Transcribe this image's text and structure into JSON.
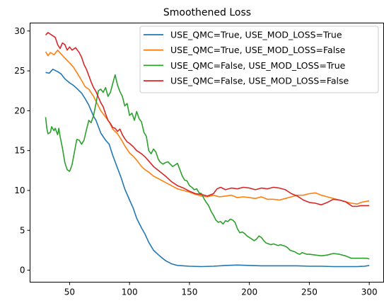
{
  "chart_data": {
    "type": "line",
    "title": "Smoothened Loss",
    "xlabel": "",
    "ylabel": "",
    "xlim": [
      17,
      312
    ],
    "ylim": [
      -1.5,
      31.0
    ],
    "xticks": [
      50,
      100,
      150,
      200,
      250,
      300
    ],
    "yticks": [
      0,
      5,
      10,
      15,
      20,
      25,
      30
    ],
    "grid": false,
    "legend_position": "top-right",
    "series": [
      {
        "name": "USE_QMC=True,  USE_MOD_LOSS=True",
        "color": "#1f77b4",
        "points": [
          [
            30,
            24.8
          ],
          [
            33,
            24.7
          ],
          [
            36,
            25.2
          ],
          [
            40,
            24.9
          ],
          [
            43,
            24.6
          ],
          [
            46,
            24.0
          ],
          [
            50,
            23.5
          ],
          [
            53,
            23.2
          ],
          [
            56,
            22.8
          ],
          [
            60,
            22.2
          ],
          [
            63,
            21.5
          ],
          [
            66,
            20.7
          ],
          [
            70,
            19.3
          ],
          [
            72,
            18.8
          ],
          [
            74,
            18.0
          ],
          [
            76,
            17.2
          ],
          [
            80,
            16.3
          ],
          [
            83,
            15.8
          ],
          [
            86,
            14.4
          ],
          [
            90,
            12.8
          ],
          [
            93,
            11.6
          ],
          [
            96,
            10.2
          ],
          [
            100,
            8.8
          ],
          [
            103,
            7.8
          ],
          [
            106,
            6.5
          ],
          [
            110,
            5.3
          ],
          [
            113,
            4.5
          ],
          [
            116,
            3.5
          ],
          [
            120,
            2.5
          ],
          [
            125,
            1.8
          ],
          [
            130,
            1.2
          ],
          [
            135,
            0.8
          ],
          [
            140,
            0.6
          ],
          [
            145,
            0.55
          ],
          [
            150,
            0.5
          ],
          [
            160,
            0.45
          ],
          [
            170,
            0.5
          ],
          [
            180,
            0.6
          ],
          [
            190,
            0.65
          ],
          [
            200,
            0.6
          ],
          [
            210,
            0.55
          ],
          [
            220,
            0.55
          ],
          [
            230,
            0.55
          ],
          [
            240,
            0.55
          ],
          [
            250,
            0.5
          ],
          [
            260,
            0.5
          ],
          [
            270,
            0.45
          ],
          [
            280,
            0.45
          ],
          [
            290,
            0.45
          ],
          [
            296,
            0.5
          ],
          [
            300,
            0.6
          ]
        ]
      },
      {
        "name": "USE_QMC=True,  USE_MOD_LOSS=False",
        "color": "#ff7f0e",
        "points": [
          [
            30,
            27.4
          ],
          [
            32,
            26.9
          ],
          [
            34,
            27.3
          ],
          [
            37,
            27.0
          ],
          [
            40,
            27.6
          ],
          [
            43,
            27.1
          ],
          [
            46,
            26.6
          ],
          [
            50,
            26.0
          ],
          [
            53,
            25.5
          ],
          [
            56,
            24.8
          ],
          [
            60,
            23.8
          ],
          [
            63,
            23.0
          ],
          [
            66,
            22.7
          ],
          [
            70,
            21.8
          ],
          [
            73,
            20.9
          ],
          [
            76,
            20.0
          ],
          [
            80,
            19.2
          ],
          [
            83,
            18.6
          ],
          [
            86,
            17.7
          ],
          [
            90,
            17.1
          ],
          [
            93,
            16.4
          ],
          [
            96,
            15.6
          ],
          [
            100,
            14.7
          ],
          [
            103,
            14.3
          ],
          [
            106,
            13.8
          ],
          [
            110,
            13.0
          ],
          [
            113,
            12.6
          ],
          [
            116,
            12.3
          ],
          [
            120,
            11.8
          ],
          [
            125,
            11.4
          ],
          [
            130,
            11.0
          ],
          [
            135,
            10.6
          ],
          [
            140,
            10.2
          ],
          [
            145,
            10.0
          ],
          [
            150,
            9.8
          ],
          [
            155,
            9.5
          ],
          [
            160,
            9.3
          ],
          [
            165,
            9.2
          ],
          [
            170,
            9.4
          ],
          [
            175,
            9.2
          ],
          [
            180,
            9.3
          ],
          [
            185,
            9.4
          ],
          [
            190,
            9.1
          ],
          [
            195,
            9.2
          ],
          [
            200,
            9.1
          ],
          [
            205,
            9.0
          ],
          [
            210,
            9.2
          ],
          [
            215,
            8.9
          ],
          [
            220,
            8.9
          ],
          [
            225,
            8.8
          ],
          [
            230,
            9.0
          ],
          [
            235,
            9.2
          ],
          [
            240,
            9.4
          ],
          [
            245,
            9.4
          ],
          [
            250,
            9.6
          ],
          [
            255,
            9.7
          ],
          [
            260,
            9.4
          ],
          [
            265,
            9.2
          ],
          [
            270,
            9.0
          ],
          [
            275,
            8.8
          ],
          [
            280,
            8.6
          ],
          [
            285,
            8.4
          ],
          [
            290,
            8.3
          ],
          [
            293,
            8.5
          ],
          [
            296,
            8.6
          ],
          [
            300,
            8.7
          ]
        ]
      },
      {
        "name": "USE_QMC=False, USE_MOD_LOSS=True",
        "color": "#2ca02c",
        "points": [
          [
            30,
            19.2
          ],
          [
            31,
            17.8
          ],
          [
            32,
            17.1
          ],
          [
            34,
            17.3
          ],
          [
            35,
            18.0
          ],
          [
            37,
            17.5
          ],
          [
            38,
            17.8
          ],
          [
            40,
            17.0
          ],
          [
            41,
            17.8
          ],
          [
            42,
            16.8
          ],
          [
            44,
            15.3
          ],
          [
            46,
            13.5
          ],
          [
            48,
            12.6
          ],
          [
            50,
            12.4
          ],
          [
            52,
            13.2
          ],
          [
            54,
            14.8
          ],
          [
            56,
            16.4
          ],
          [
            58,
            16.3
          ],
          [
            60,
            15.8
          ],
          [
            62,
            16.3
          ],
          [
            64,
            17.6
          ],
          [
            66,
            18.8
          ],
          [
            68,
            18.5
          ],
          [
            70,
            19.4
          ],
          [
            72,
            20.9
          ],
          [
            74,
            22.5
          ],
          [
            76,
            22.7
          ],
          [
            78,
            22.3
          ],
          [
            80,
            22.9
          ],
          [
            82,
            21.8
          ],
          [
            84,
            22.3
          ],
          [
            86,
            23.4
          ],
          [
            88,
            24.5
          ],
          [
            90,
            23.2
          ],
          [
            92,
            22.4
          ],
          [
            94,
            21.8
          ],
          [
            96,
            20.6
          ],
          [
            98,
            20.9
          ],
          [
            100,
            19.4
          ],
          [
            102,
            19.7
          ],
          [
            104,
            18.8
          ],
          [
            106,
            19.9
          ],
          [
            108,
            19.0
          ],
          [
            110,
            18.6
          ],
          [
            112,
            17.3
          ],
          [
            114,
            16.8
          ],
          [
            116,
            15.0
          ],
          [
            118,
            14.6
          ],
          [
            120,
            15.2
          ],
          [
            122,
            14.8
          ],
          [
            124,
            13.9
          ],
          [
            126,
            13.5
          ],
          [
            128,
            13.3
          ],
          [
            130,
            13.5
          ],
          [
            132,
            13.6
          ],
          [
            134,
            13.3
          ],
          [
            136,
            13.0
          ],
          [
            138,
            13.2
          ],
          [
            140,
            13.4
          ],
          [
            142,
            12.6
          ],
          [
            144,
            11.8
          ],
          [
            146,
            11.3
          ],
          [
            148,
            11.2
          ],
          [
            150,
            10.6
          ],
          [
            152,
            10.4
          ],
          [
            154,
            10.1
          ],
          [
            156,
            10.2
          ],
          [
            158,
            9.7
          ],
          [
            160,
            9.6
          ],
          [
            162,
            9.0
          ],
          [
            164,
            8.5
          ],
          [
            166,
            8.1
          ],
          [
            168,
            7.4
          ],
          [
            170,
            6.9
          ],
          [
            172,
            6.3
          ],
          [
            174,
            6.0
          ],
          [
            176,
            6.1
          ],
          [
            178,
            5.8
          ],
          [
            180,
            6.2
          ],
          [
            182,
            6.1
          ],
          [
            184,
            6.4
          ],
          [
            186,
            6.3
          ],
          [
            188,
            6.0
          ],
          [
            190,
            5.2
          ],
          [
            192,
            4.7
          ],
          [
            194,
            4.8
          ],
          [
            196,
            4.6
          ],
          [
            198,
            4.3
          ],
          [
            200,
            4.1
          ],
          [
            202,
            3.9
          ],
          [
            204,
            3.7
          ],
          [
            206,
            3.9
          ],
          [
            208,
            4.3
          ],
          [
            210,
            4.1
          ],
          [
            212,
            3.7
          ],
          [
            214,
            3.4
          ],
          [
            216,
            3.3
          ],
          [
            218,
            3.2
          ],
          [
            220,
            3.3
          ],
          [
            222,
            3.2
          ],
          [
            224,
            3.1
          ],
          [
            226,
            3.2
          ],
          [
            228,
            3.1
          ],
          [
            230,
            3.0
          ],
          [
            232,
            2.8
          ],
          [
            234,
            2.5
          ],
          [
            236,
            2.4
          ],
          [
            238,
            2.3
          ],
          [
            240,
            2.1
          ],
          [
            242,
            2.0
          ],
          [
            244,
            2.2
          ],
          [
            246,
            2.1
          ],
          [
            248,
            2.0
          ],
          [
            250,
            2.0
          ],
          [
            255,
            1.9
          ],
          [
            260,
            1.8
          ],
          [
            265,
            1.9
          ],
          [
            270,
            2.1
          ],
          [
            275,
            2.0
          ],
          [
            280,
            1.8
          ],
          [
            285,
            1.5
          ],
          [
            290,
            1.5
          ],
          [
            295,
            1.5
          ],
          [
            298,
            1.5
          ],
          [
            300,
            1.4
          ]
        ]
      },
      {
        "name": "USE_QMC=False, USE_MOD_LOSS=False",
        "color": "#d62728",
        "points": [
          [
            30,
            29.5
          ],
          [
            32,
            29.8
          ],
          [
            35,
            29.5
          ],
          [
            38,
            29.2
          ],
          [
            40,
            28.3
          ],
          [
            42,
            27.8
          ],
          [
            44,
            28.5
          ],
          [
            46,
            28.3
          ],
          [
            48,
            27.6
          ],
          [
            50,
            28.0
          ],
          [
            52,
            27.6
          ],
          [
            55,
            27.9
          ],
          [
            58,
            27.3
          ],
          [
            60,
            26.7
          ],
          [
            62,
            25.8
          ],
          [
            64,
            25.2
          ],
          [
            66,
            24.4
          ],
          [
            68,
            23.6
          ],
          [
            70,
            22.9
          ],
          [
            72,
            22.4
          ],
          [
            74,
            21.7
          ],
          [
            76,
            21.0
          ],
          [
            78,
            20.5
          ],
          [
            80,
            19.6
          ],
          [
            82,
            18.8
          ],
          [
            84,
            18.4
          ],
          [
            86,
            17.9
          ],
          [
            88,
            17.8
          ],
          [
            90,
            17.4
          ],
          [
            92,
            17.7
          ],
          [
            94,
            17.0
          ],
          [
            96,
            16.5
          ],
          [
            98,
            16.1
          ],
          [
            100,
            15.9
          ],
          [
            103,
            15.5
          ],
          [
            106,
            15.0
          ],
          [
            110,
            14.6
          ],
          [
            113,
            14.2
          ],
          [
            116,
            13.7
          ],
          [
            120,
            13.0
          ],
          [
            125,
            12.4
          ],
          [
            130,
            11.8
          ],
          [
            135,
            11.1
          ],
          [
            140,
            10.6
          ],
          [
            145,
            10.3
          ],
          [
            150,
            9.9
          ],
          [
            155,
            9.6
          ],
          [
            160,
            9.5
          ],
          [
            165,
            9.3
          ],
          [
            170,
            9.6
          ],
          [
            173,
            10.2
          ],
          [
            176,
            10.4
          ],
          [
            180,
            10.1
          ],
          [
            185,
            10.3
          ],
          [
            190,
            10.2
          ],
          [
            195,
            10.4
          ],
          [
            200,
            10.3
          ],
          [
            205,
            10.1
          ],
          [
            210,
            10.3
          ],
          [
            215,
            10.2
          ],
          [
            220,
            10.4
          ],
          [
            225,
            10.3
          ],
          [
            230,
            10.1
          ],
          [
            235,
            9.6
          ],
          [
            240,
            9.3
          ],
          [
            245,
            8.8
          ],
          [
            250,
            8.5
          ],
          [
            255,
            8.4
          ],
          [
            260,
            8.2
          ],
          [
            265,
            8.5
          ],
          [
            270,
            8.9
          ],
          [
            275,
            8.8
          ],
          [
            280,
            8.6
          ],
          [
            283,
            8.3
          ],
          [
            286,
            8.0
          ],
          [
            290,
            8.0
          ],
          [
            293,
            8.1
          ],
          [
            296,
            8.1
          ],
          [
            300,
            8.1
          ]
        ]
      }
    ]
  }
}
